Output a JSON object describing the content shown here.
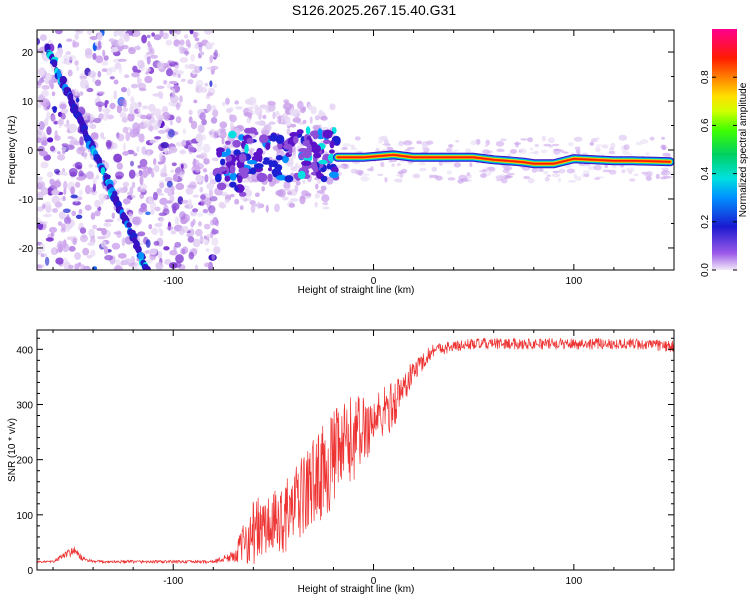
{
  "title": "S126.2025.267.15.40.G31",
  "chart_data": [
    {
      "type": "heatmap",
      "title": "S126.2025.267.15.40.G31",
      "xlabel": "Height of straight line (km)",
      "ylabel": "Frequency (Hz)",
      "xlim": [
        -168,
        150
      ],
      "ylim": [
        -24.5,
        24.5
      ],
      "xticks": [
        -100,
        0,
        100
      ],
      "yticks": [
        -20,
        -10,
        0,
        10,
        20
      ],
      "features": {
        "diagonal_ridge": {
          "x": [
            -163,
            -113
          ],
          "y": [
            21,
            -24.5
          ]
        },
        "noise_region_x": [
          -168,
          -78
        ],
        "transition_region_x": [
          -78,
          -20
        ],
        "carrier_line": {
          "x": [
            -18,
            -5,
            10,
            20,
            50,
            60,
            70,
            75,
            80,
            90,
            100,
            110,
            120,
            130,
            140,
            148
          ],
          "y": [
            -1.5,
            -1.5,
            -1.0,
            -1.5,
            -1.5,
            -2.0,
            -2.3,
            -2.5,
            -2.8,
            -2.8,
            -1.8,
            -2.0,
            -2.2,
            -2.2,
            -2.3,
            -2.4
          ]
        }
      },
      "colorbar": {
        "label": "Normalized spectral amplitude",
        "range": [
          0,
          1
        ],
        "ticks": [
          "0.0",
          "0.2",
          "0.4",
          "0.6",
          "0.8"
        ]
      }
    },
    {
      "type": "line",
      "xlabel": "Height of straight line (km)",
      "ylabel": "SNR (10 * v/v)",
      "xlim": [
        -168,
        150
      ],
      "ylim": [
        0,
        435
      ],
      "xticks": [
        -100,
        0,
        100
      ],
      "yticks": [
        0,
        100,
        200,
        300,
        400
      ],
      "color": "#ee3333",
      "profile": {
        "x": [
          -168,
          -160,
          -150,
          -145,
          -140,
          -120,
          -100,
          -80,
          -70,
          -60,
          -50,
          -40,
          -30,
          -20,
          -10,
          0,
          10,
          20,
          30,
          40,
          50,
          70,
          100,
          130,
          150
        ],
        "y": [
          15,
          15,
          35,
          20,
          15,
          15,
          15,
          15,
          25,
          70,
          80,
          110,
          160,
          200,
          240,
          270,
          300,
          360,
          400,
          405,
          410,
          410,
          410,
          410,
          405
        ],
        "noise": [
          2,
          2,
          10,
          4,
          3,
          3,
          3,
          3,
          10,
          60,
          60,
          70,
          80,
          90,
          80,
          50,
          45,
          20,
          12,
          10,
          10,
          10,
          10,
          10,
          10
        ]
      }
    }
  ]
}
